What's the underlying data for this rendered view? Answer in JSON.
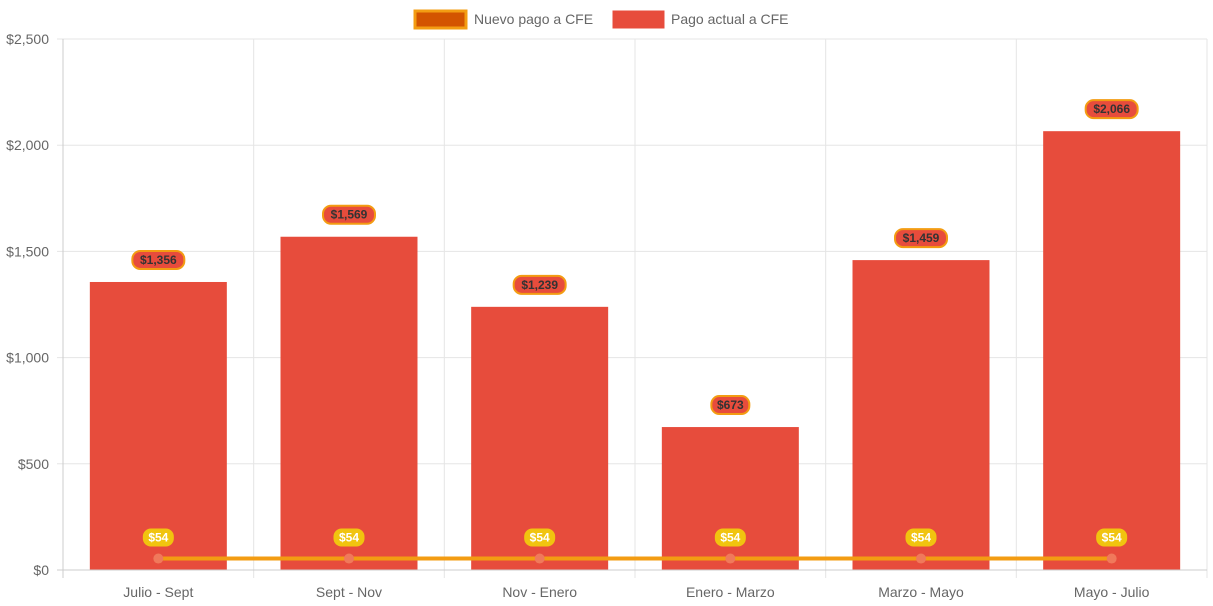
{
  "chart_data": {
    "type": "bar",
    "title": "",
    "xlabel": "",
    "ylabel": "",
    "categories": [
      "Julio - Sept",
      "Sept - Nov",
      "Nov - Enero",
      "Enero - Marzo",
      "Marzo - Mayo",
      "Mayo - Julio"
    ],
    "ylim": [
      0,
      2500
    ],
    "yticks": [
      0,
      500,
      1000,
      1500,
      2000,
      2500
    ],
    "ytick_labels": [
      "$0",
      "$500",
      "$1,000",
      "$1,500",
      "$2,000",
      "$2,500"
    ],
    "grid": true,
    "legend_position": "top",
    "series": [
      {
        "name": "Nuevo pago a CFE",
        "type": "line",
        "values": [
          54,
          54,
          54,
          54,
          54,
          54
        ],
        "labels": [
          "$54",
          "$54",
          "$54",
          "$54",
          "$54",
          "$54"
        ],
        "color": "#f39c12",
        "legend_fill": "#d35400",
        "point_color": "#f0795b",
        "label_bg": "#f1c40f",
        "label_text": "#ffffff"
      },
      {
        "name": "Pago actual a CFE",
        "type": "bar",
        "values": [
          1356,
          1569,
          1239,
          673,
          1459,
          2066
        ],
        "labels": [
          "$1,356",
          "$1,569",
          "$1,239",
          "$673",
          "$1,459",
          "$2,066"
        ],
        "color": "#e74c3c",
        "label_bg": "#e74c3c",
        "label_border": "#f39c12",
        "label_text": "#333333"
      }
    ]
  }
}
